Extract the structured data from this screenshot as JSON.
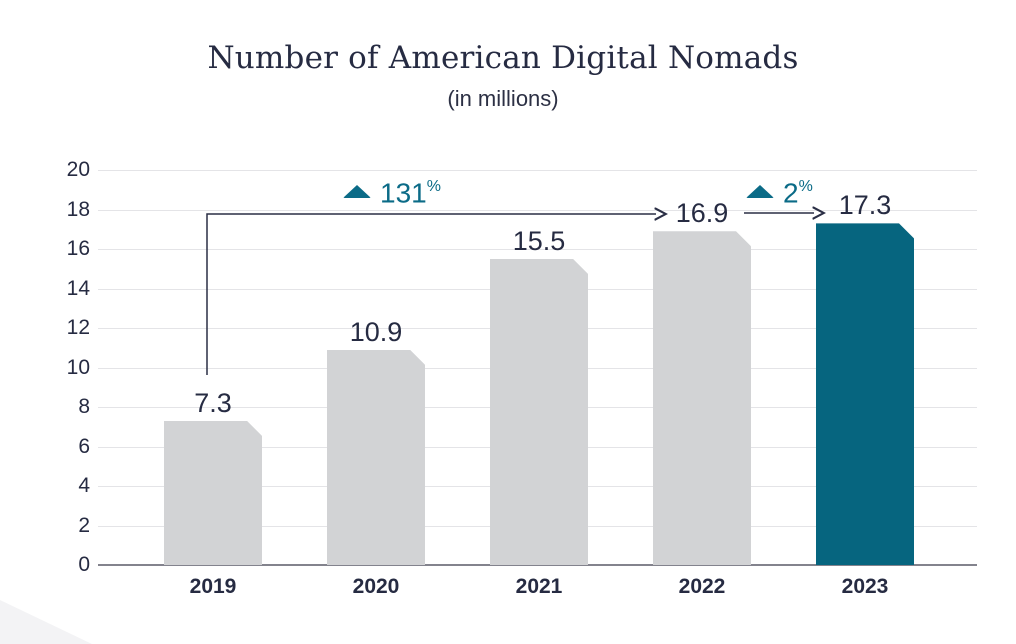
{
  "header": {
    "title": "Number of American Digital Nomads",
    "subtitle": "(in millions)"
  },
  "chart_data": {
    "type": "bar",
    "title": "Number of American Digital Nomads",
    "subtitle": "(in millions)",
    "categories": [
      "2019",
      "2020",
      "2021",
      "2022",
      "2023"
    ],
    "values": [
      7.3,
      10.9,
      15.5,
      16.9,
      17.3
    ],
    "value_labels": [
      "7.3",
      "10.9",
      "15.5",
      "16.9",
      "17.3"
    ],
    "highlight_index": 4,
    "ylim": [
      0,
      20
    ],
    "yticks": [
      0,
      2,
      4,
      6,
      8,
      10,
      12,
      14,
      16,
      18,
      20
    ],
    "grid": "horizontal",
    "legend": "none",
    "annotations": [
      {
        "value": "131",
        "suffix": "%",
        "icon": "up-triangle",
        "from": "2019",
        "to": "2022"
      },
      {
        "value": "2",
        "suffix": "%",
        "icon": "up-triangle",
        "from": "2022",
        "to": "2023"
      }
    ]
  },
  "colors": {
    "bar_gray": "#d2d3d5",
    "bar_highlight_teal": "#06657f",
    "annotation_teal": "#0b6b87",
    "text_navy": "#262b42",
    "gridline": "#e4e4e7",
    "baseline": "#83838d",
    "arrow_line": "#2a2e45",
    "corner_wedge": "#f3f3f5"
  }
}
